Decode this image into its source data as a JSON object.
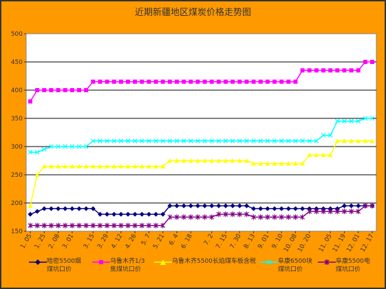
{
  "chart_data": {
    "type": "line",
    "title": "近期新疆地区煤炭价格走势图",
    "ylim": [
      150,
      500
    ],
    "yticks": [
      150,
      200,
      250,
      300,
      350,
      400,
      450,
      500
    ],
    "grid": "horizontal",
    "legend_position": "bottom",
    "x_tick_labels": [
      "1. 05",
      "1. 25",
      "2. 08",
      "3. 01",
      "3. 15",
      "3. 29",
      "4. 12",
      "4. 26",
      "5. 7",
      "5. 21",
      "6. 4",
      "6. 18",
      "7. 2",
      "7. 15",
      "7. 30",
      "8. 13",
      "9. 01",
      "9. 10",
      "10. 08",
      "10. 20",
      "11. 05",
      "11. 19",
      "12. 01",
      "12. 17"
    ],
    "x": [
      "1.05",
      "1.12",
      "1.18",
      "1.25",
      "2.01",
      "2.08",
      "2.15",
      "2.22",
      "3.01",
      "3.08",
      "3.15",
      "3.22",
      "3.29",
      "4.05",
      "4.12",
      "4.19",
      "4.26",
      "5.03",
      "5.07",
      "5.14",
      "5.21",
      "5.28",
      "6.04",
      "6.11",
      "6.18",
      "6.25",
      "7.02",
      "7.09",
      "7.15",
      "7.22",
      "7.30",
      "8.06",
      "8.13",
      "8.20",
      "8.27",
      "9.01",
      "9.05",
      "9.10",
      "9.24",
      "10.08",
      "10.13",
      "10.20",
      "10.27",
      "11.05",
      "11.12",
      "11.19",
      "11.26",
      "12.01",
      "12.10",
      "12.17"
    ],
    "series": [
      {
        "name": "哈密5500烟煤坑口价",
        "color": "#000080",
        "marker": "diamond",
        "values": [
          180,
          185,
          190,
          190,
          190,
          190,
          190,
          190,
          190,
          190,
          180,
          180,
          180,
          180,
          180,
          180,
          180,
          180,
          180,
          180,
          195,
          195,
          195,
          195,
          195,
          195,
          195,
          195,
          195,
          195,
          195,
          195,
          190,
          190,
          190,
          190,
          190,
          190,
          190,
          190,
          190,
          190,
          190,
          190,
          190,
          195,
          195,
          195,
          195,
          195
        ]
      },
      {
        "name": "乌鲁木齐1/3焦煤坑口价",
        "color": "#FF00FF",
        "marker": "square",
        "values": [
          380,
          400,
          400,
          400,
          400,
          400,
          400,
          400,
          400,
          415,
          415,
          415,
          415,
          415,
          415,
          415,
          415,
          415,
          415,
          415,
          415,
          415,
          415,
          415,
          415,
          415,
          415,
          415,
          415,
          415,
          415,
          415,
          415,
          415,
          415,
          415,
          415,
          415,
          415,
          435,
          435,
          435,
          435,
          435,
          435,
          435,
          435,
          435,
          450,
          450
        ]
      },
      {
        "name": "乌鲁木齐5500长焰煤车板含税",
        "color": "#FFFF00",
        "marker": "triangle",
        "values": [
          195,
          250,
          265,
          265,
          265,
          265,
          265,
          265,
          265,
          265,
          265,
          265,
          265,
          265,
          265,
          265,
          265,
          265,
          265,
          265,
          275,
          275,
          275,
          275,
          275,
          275,
          275,
          275,
          275,
          275,
          275,
          275,
          270,
          270,
          270,
          270,
          270,
          270,
          270,
          270,
          285,
          285,
          285,
          285,
          310,
          310,
          310,
          310,
          310,
          310
        ]
      },
      {
        "name": "阜康6500块煤坑口价",
        "color": "#00FFFF",
        "marker": "x",
        "values": [
          290,
          290,
          295,
          300,
          300,
          300,
          300,
          300,
          300,
          310,
          310,
          310,
          310,
          310,
          310,
          310,
          310,
          310,
          310,
          310,
          310,
          310,
          310,
          310,
          310,
          310,
          310,
          310,
          310,
          310,
          310,
          310,
          310,
          310,
          310,
          310,
          310,
          310,
          310,
          310,
          310,
          310,
          320,
          320,
          345,
          345,
          345,
          345,
          350,
          350
        ]
      },
      {
        "name": "阜康5500电煤坑口价",
        "color": "#800080",
        "marker": "asterisk",
        "values": [
          160,
          160,
          160,
          160,
          160,
          160,
          160,
          160,
          160,
          160,
          160,
          160,
          160,
          160,
          160,
          160,
          160,
          160,
          160,
          160,
          175,
          175,
          175,
          175,
          175,
          175,
          175,
          180,
          180,
          180,
          180,
          180,
          175,
          175,
          175,
          175,
          175,
          175,
          175,
          175,
          185,
          185,
          185,
          185,
          185,
          185,
          185,
          185,
          195,
          195
        ]
      }
    ]
  },
  "legend": {
    "items": [
      {
        "label": "哈密5500烟\n煤坑口价"
      },
      {
        "label": "乌鲁木齐1/3\n焦煤坑口价"
      },
      {
        "label": "乌鲁木齐5500长焰煤车板含税"
      },
      {
        "label": "阜康6500块\n煤坑口价"
      },
      {
        "label": "阜康5500电\n煤坑口价"
      }
    ]
  }
}
